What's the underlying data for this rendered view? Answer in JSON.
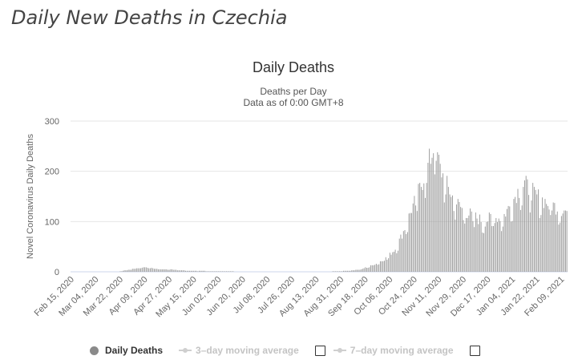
{
  "page": {
    "title": "Daily New Deaths in Czechia"
  },
  "chart_data": {
    "type": "bar",
    "title": "Daily Deaths",
    "subtitle_line1": "Deaths per Day",
    "subtitle_line2": "Data as of 0:00 GMT+8",
    "ylabel": "Novel Coronavirus Daily Deaths",
    "xlabel": "",
    "ylim": [
      0,
      300
    ],
    "yticks": [
      0,
      100,
      200,
      300
    ],
    "start_date": "2020-02-15",
    "end_date": "2021-02-13",
    "xtick_labels": [
      "Feb 15, 2020",
      "Mar 04, 2020",
      "Mar 22, 2020",
      "Apr 09, 2020",
      "Apr 27, 2020",
      "May 15, 2020",
      "Jun 02, 2020",
      "Jun 20, 2020",
      "Jul 08, 2020",
      "Jul 26, 2020",
      "Aug 13, 2020",
      "Aug 31, 2020",
      "Sep 18, 2020",
      "Oct 06, 2020",
      "Oct 24, 2020",
      "Nov 11, 2020",
      "Nov 29, 2020",
      "Dec 17, 2020",
      "Jan 04, 2021",
      "Jan 22, 2021",
      "Feb 09, 2021"
    ],
    "series": [
      {
        "name": "Daily Deaths",
        "color": "#999999",
        "keypoints": [
          [
            "2020-02-15",
            0
          ],
          [
            "2020-03-20",
            0
          ],
          [
            "2020-03-22",
            1
          ],
          [
            "2020-03-28",
            4
          ],
          [
            "2020-04-05",
            8
          ],
          [
            "2020-04-10",
            10
          ],
          [
            "2020-04-16",
            6
          ],
          [
            "2020-04-25",
            5
          ],
          [
            "2020-05-05",
            3
          ],
          [
            "2020-05-15",
            2
          ],
          [
            "2020-06-01",
            1
          ],
          [
            "2020-07-01",
            0
          ],
          [
            "2020-08-20",
            0
          ],
          [
            "2020-09-05",
            2
          ],
          [
            "2020-09-15",
            5
          ],
          [
            "2020-09-25",
            15
          ],
          [
            "2020-10-02",
            25
          ],
          [
            "2020-10-10",
            45
          ],
          [
            "2020-10-16",
            80
          ],
          [
            "2020-10-22",
            125
          ],
          [
            "2020-10-28",
            165
          ],
          [
            "2020-11-02",
            205
          ],
          [
            "2020-11-06",
            235
          ],
          [
            "2020-11-08",
            258
          ],
          [
            "2020-11-12",
            205
          ],
          [
            "2020-11-18",
            165
          ],
          [
            "2020-11-23",
            140
          ],
          [
            "2020-11-30",
            120
          ],
          [
            "2020-12-07",
            110
          ],
          [
            "2020-12-14",
            100
          ],
          [
            "2020-12-21",
            110
          ],
          [
            "2020-12-27",
            105
          ],
          [
            "2021-01-03",
            135
          ],
          [
            "2021-01-08",
            160
          ],
          [
            "2021-01-13",
            175
          ],
          [
            "2021-01-18",
            160
          ],
          [
            "2021-01-25",
            145
          ],
          [
            "2021-02-01",
            135
          ],
          [
            "2021-02-08",
            125
          ],
          [
            "2021-02-13",
            120
          ]
        ]
      }
    ],
    "legend": {
      "items": [
        {
          "label": "Daily Deaths",
          "enabled": true
        },
        {
          "label": "3–day moving average",
          "enabled": false
        },
        {
          "label": "7–day moving average",
          "enabled": false
        }
      ]
    }
  }
}
